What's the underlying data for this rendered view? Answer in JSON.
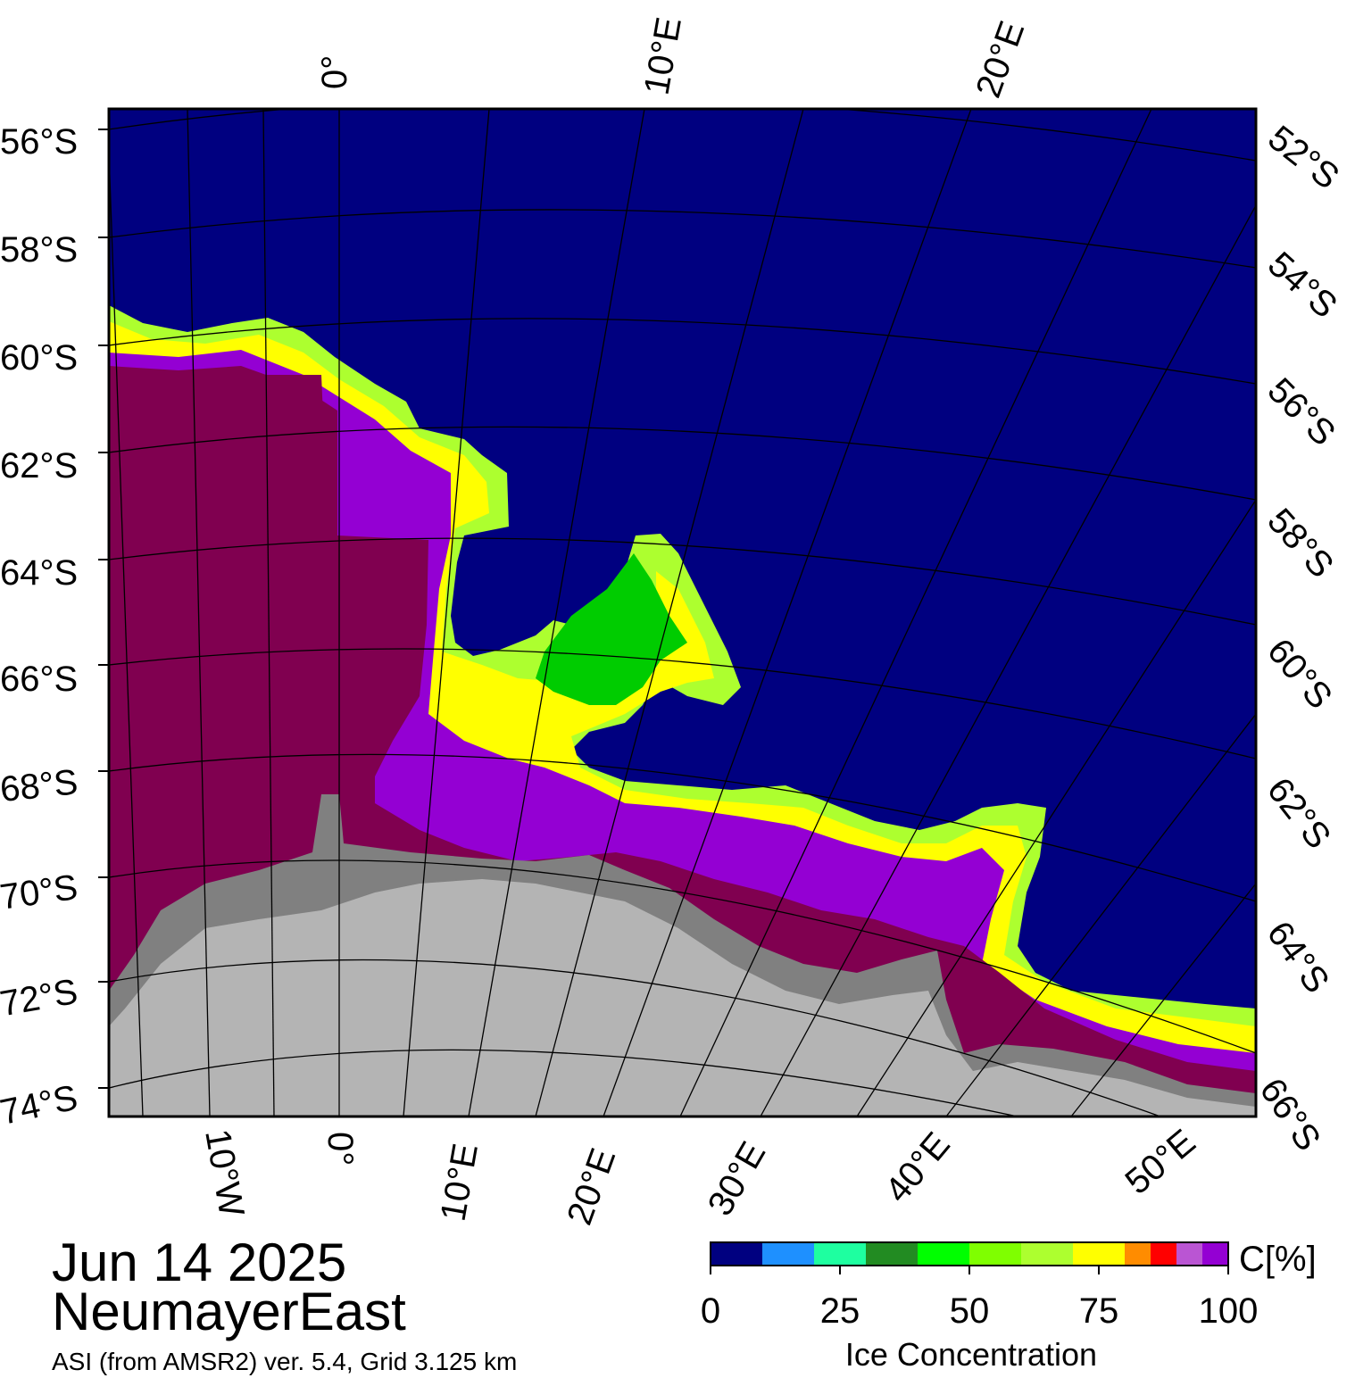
{
  "map": {
    "date": "Jun 14 2025",
    "region": "NeumayerEast",
    "source": "ASI (from AMSR2) ver. 5.4,  Grid 3.125 km",
    "colors": {
      "open_water": "#000080",
      "land_ice_shelf": "#b4b4b4",
      "land_rock": "#808080",
      "sea_ice_100": "#800050",
      "sea_ice_95": "#9400d3",
      "graticule": "#000000"
    },
    "top_longitude_labels": [
      "0°",
      "10°E",
      "20°E"
    ],
    "bottom_longitude_labels": [
      "10°W",
      "0°",
      "10°E",
      "20°E",
      "30°E",
      "40°E",
      "50°E"
    ],
    "left_latitude_labels": [
      "56°S",
      "58°S",
      "60°S",
      "62°S",
      "64°S",
      "66°S",
      "68°S",
      "70°S",
      "72°S",
      "74°S"
    ],
    "right_latitude_labels": [
      "52°S",
      "54°S",
      "56°S",
      "58°S",
      "60°S",
      "62°S",
      "64°S",
      "66°S"
    ]
  },
  "colorbar": {
    "title": "Ice Concentration",
    "unit_label": "C[%]",
    "tick_labels": [
      "0",
      "25",
      "50",
      "75",
      "100"
    ],
    "tick_values": [
      0,
      25,
      50,
      75,
      100
    ],
    "bins": [
      {
        "from": 0,
        "to": 10,
        "color": "#000080"
      },
      {
        "from": 10,
        "to": 20,
        "color": "#1e90ff"
      },
      {
        "from": 20,
        "to": 30,
        "color": "#1effa0"
      },
      {
        "from": 30,
        "to": 40,
        "color": "#228b22"
      },
      {
        "from": 40,
        "to": 50,
        "color": "#00ff00"
      },
      {
        "from": 50,
        "to": 60,
        "color": "#7fff00"
      },
      {
        "from": 60,
        "to": 70,
        "color": "#adff2f"
      },
      {
        "from": 70,
        "to": 80,
        "color": "#ffff00"
      },
      {
        "from": 80,
        "to": 85,
        "color": "#ff8c00"
      },
      {
        "from": 85,
        "to": 90,
        "color": "#ff0000"
      },
      {
        "from": 90,
        "to": 95,
        "color": "#ba55d3"
      },
      {
        "from": 95,
        "to": 100,
        "color": "#9400d3"
      }
    ]
  }
}
